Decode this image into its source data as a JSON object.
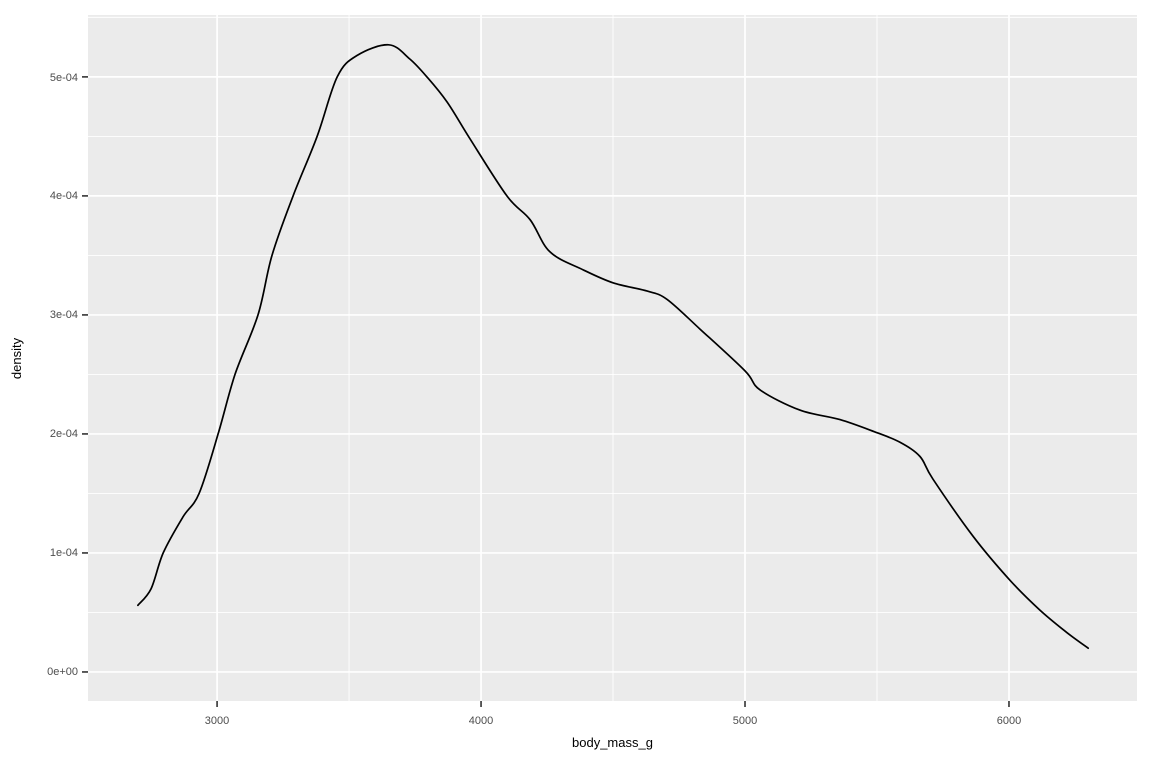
{
  "chart_data": {
    "type": "line",
    "subtype": "density-curve",
    "title": "",
    "xlabel": "body_mass_g",
    "ylabel": "density",
    "x_tick_labels": [
      "3000",
      "4000",
      "5000",
      "6000"
    ],
    "x_tick_values": [
      3000,
      4000,
      5000,
      6000
    ],
    "y_tick_labels": [
      "0e+00",
      "1e-04",
      "2e-04",
      "3e-04",
      "4e-04",
      "5e-04"
    ],
    "y_tick_values": [
      0,
      0.0001,
      0.0002,
      0.0003,
      0.0004,
      0.0005
    ],
    "x_minor_gridlines": [
      3500,
      4500,
      5500
    ],
    "y_minor_gridlines": [
      5e-05,
      0.00015,
      0.00025,
      0.00035,
      0.00045,
      0.00055
    ],
    "xlim": [
      2511,
      6485
    ],
    "ylim": [
      -2.44e-05,
      0.000552
    ],
    "grid": true,
    "legend": false,
    "colors": {
      "panel_background": "#EBEBEB",
      "gridline": "#FFFFFF",
      "curve": "#000000",
      "tick_mark": "#333333",
      "tick_label": "#4d4d4d",
      "axis_title": "#000000",
      "figure_background": "#FFFFFF"
    },
    "series": [
      {
        "name": "density",
        "points": [
          [
            2700,
            5.6e-05
          ],
          [
            2750,
            7e-05
          ],
          [
            2796,
            0.0001
          ],
          [
            2870,
            0.00013
          ],
          [
            2932,
            0.00015
          ],
          [
            3004,
            0.0002
          ],
          [
            3068,
            0.00025
          ],
          [
            3155,
            0.0003
          ],
          [
            3208,
            0.00035
          ],
          [
            3288,
            0.0004
          ],
          [
            3379,
            0.00045
          ],
          [
            3455,
            0.0005
          ],
          [
            3530,
            0.000518
          ],
          [
            3650,
            0.000527
          ],
          [
            3730,
            0.000515
          ],
          [
            3795,
            0.0005
          ],
          [
            3871,
            0.000479
          ],
          [
            3958,
            0.000448
          ],
          [
            4098,
            0.0004
          ],
          [
            4186,
            0.00038
          ],
          [
            4261,
            0.000353
          ],
          [
            4386,
            0.000338
          ],
          [
            4500,
            0.000327
          ],
          [
            4630,
            0.00032
          ],
          [
            4705,
            0.000313
          ],
          [
            4830,
            0.000288
          ],
          [
            5000,
            0.000253
          ],
          [
            5057,
            0.000237
          ],
          [
            5208,
            0.00022
          ],
          [
            5360,
            0.000212
          ],
          [
            5500,
            0.000201
          ],
          [
            5587,
            0.000193
          ],
          [
            5663,
            0.000181
          ],
          [
            5712,
            0.000162
          ],
          [
            5864,
            0.000114
          ],
          [
            6004,
            7.7e-05
          ],
          [
            6117,
            5.2e-05
          ],
          [
            6220,
            3.3e-05
          ],
          [
            6300,
            2e-05
          ]
        ]
      }
    ]
  }
}
